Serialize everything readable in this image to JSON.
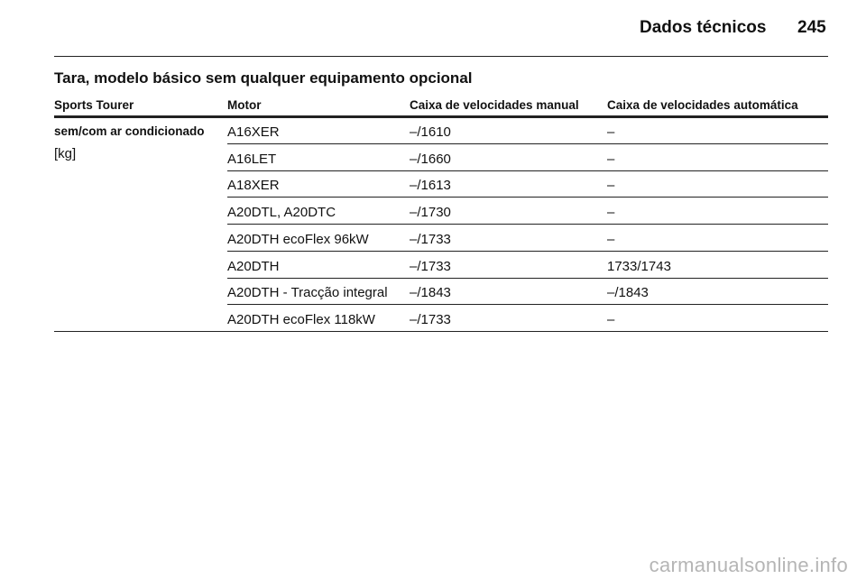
{
  "header": {
    "title": "Dados técnicos",
    "page": "245"
  },
  "section_title": "Tara, modelo básico sem qualquer equipamento opcional",
  "table": {
    "columns": [
      "Sports Tourer",
      "Motor",
      "Caixa de velocidades manual",
      "Caixa de velocidades automática"
    ],
    "row_label": {
      "label": "sem/com ar condicionado",
      "unit": "[kg]"
    },
    "rows": [
      [
        "A16XER",
        "–/1610",
        "–"
      ],
      [
        "A16LET",
        "–/1660",
        "–"
      ],
      [
        "A18XER",
        "–/1613",
        "–"
      ],
      [
        "A20DTL, A20DTC",
        "–/1730",
        "–"
      ],
      [
        "A20DTH ecoFlex 96kW",
        "–/1733",
        "–"
      ],
      [
        "A20DTH",
        "–/1733",
        "1733/1743"
      ],
      [
        "A20DTH - Tracção integral",
        "–/1843",
        "–/1843"
      ],
      [
        "A20DTH ecoFlex 118kW",
        "–/1733",
        "–"
      ]
    ]
  },
  "watermark": "carmanualsonline.info"
}
